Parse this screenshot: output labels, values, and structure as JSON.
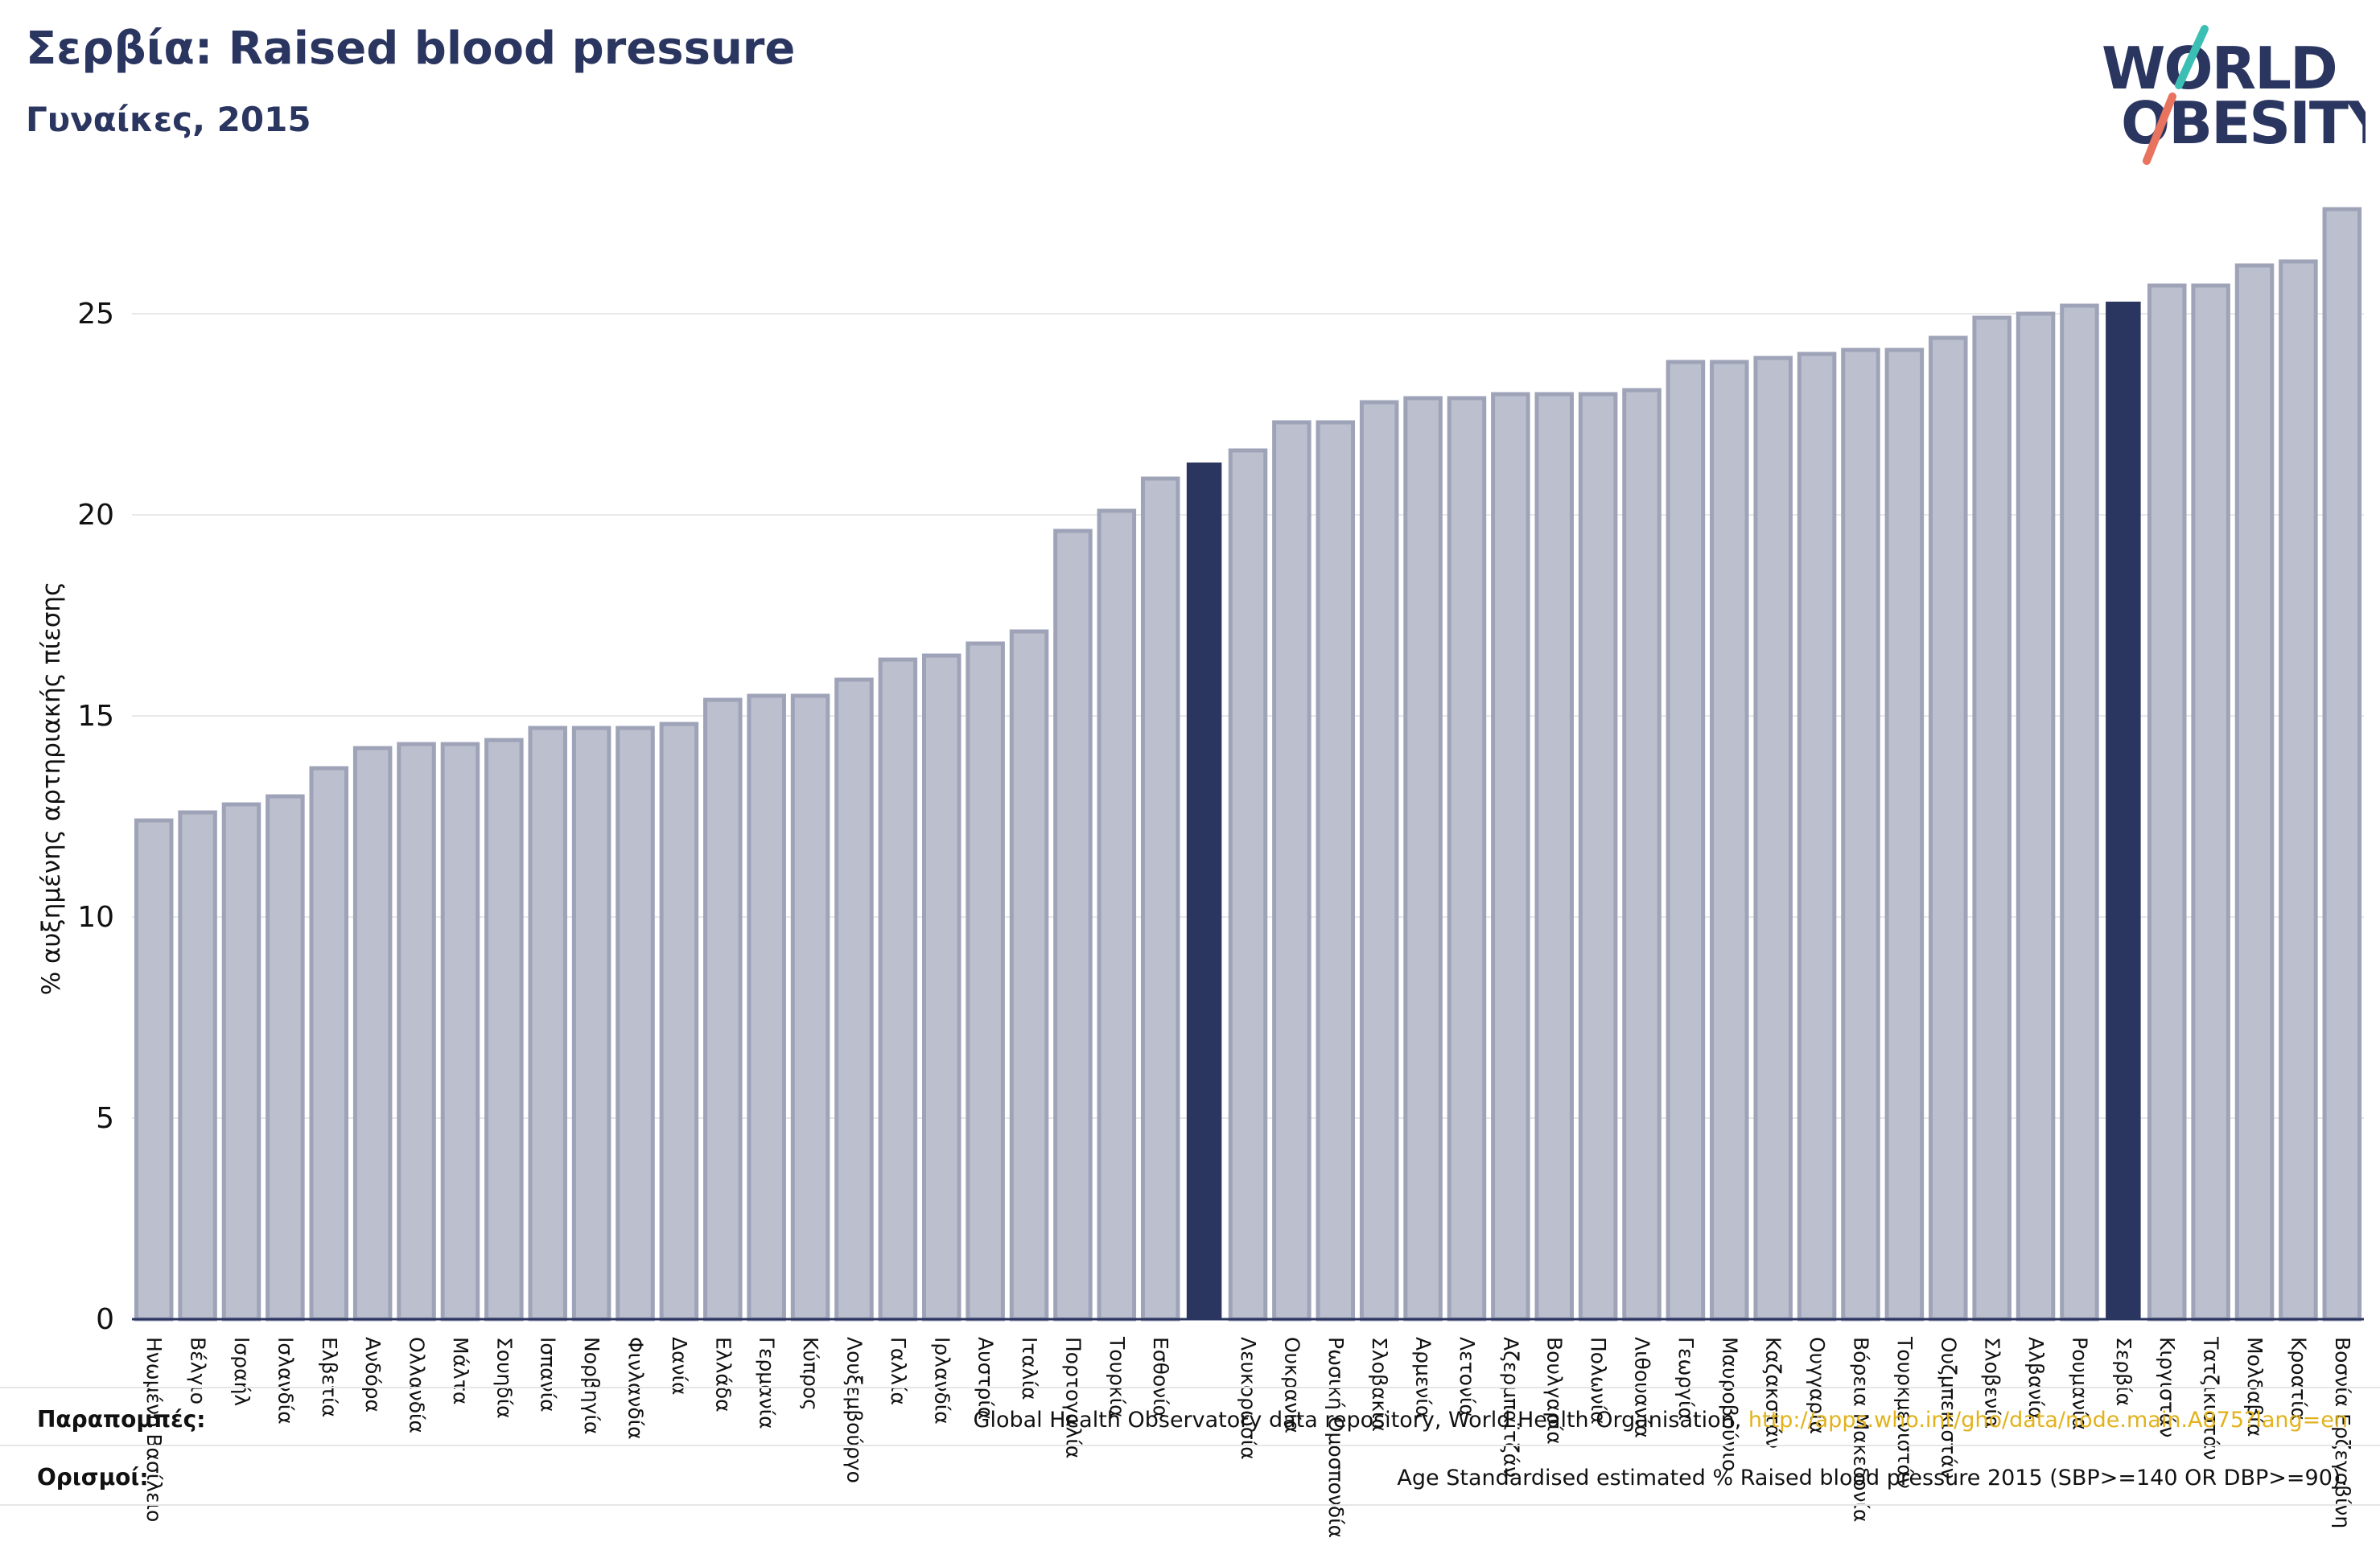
{
  "header": {
    "title": "Σερβία: Raised blood pressure",
    "subtitle": "Γυναίκες, 2015"
  },
  "logo": {
    "line1": "WORLD",
    "line2": "OBESITY"
  },
  "footer": {
    "sources_label": "Παραπομπές:",
    "sources_text": "Global Health Observatory data repository, World Health Organisation, ",
    "sources_link": "http://apps.who.int/gho/data/node.main.A875?lang=en",
    "definitions_label": "Ορισμοί:",
    "definitions_text": "Age Standardised estimated % Raised blood pressure 2015 (SBP>=140 OR DBP>=90)."
  },
  "colors": {
    "bar": "#bcbfcd",
    "bar_stroke": "#9ea3b8",
    "highlight": "#2a3560",
    "text": "#2a3560",
    "link": "#e2b21c",
    "logo_teal": "#3bbfb4",
    "logo_coral": "#e8735f"
  },
  "chart_data": {
    "type": "bar",
    "title": "Σερβία: Raised blood pressure",
    "subtitle": "Γυναίκες, 2015",
    "ylabel": "% αυξημένης αρτηριακής πίεσης",
    "xlabel": "",
    "ylim": [
      0,
      28
    ],
    "yticks": [
      0,
      5,
      10,
      15,
      20,
      25
    ],
    "grid": true,
    "categories": [
      "Ηνωμένο Βασίλειο",
      "Βέλγιο",
      "Ισραήλ",
      "Ισλανδία",
      "Ελβετία",
      "Ανδόρα",
      "Ολλανδία",
      "Μάλτα",
      "Σουηδία",
      "Ισπανία",
      "Νορβηγία",
      "Φινλανδία",
      "Δανία",
      "Ελλάδα",
      "Γερμανία",
      "Κύπρος",
      "Λουξεμβούργο",
      "Γαλλία",
      "Ιρλανδία",
      "Αυστρία",
      "Ιταλία",
      "Πορτογαλία",
      "Τουρκία",
      "Εσθονία",
      "",
      "Λευκορωσία",
      "Ουκρανία",
      "Ρωσική Ομοσπονδία",
      "Σλοβακία",
      "Αρμενία",
      "Λετονία",
      "Αζερμπαϊτζάν",
      "Βουλγαρία",
      "Πολωνία",
      "Λιθουανία",
      "Γεωργία",
      "Μαυροβούνιο",
      "Καζακστάν",
      "Ουγγαρία",
      "Βόρεια Μακεδονία",
      "Τουρκμενιστάν",
      "Ουζμπεκιστάν",
      "Σλοβενία",
      "Αλβανία",
      "Ρουμανία",
      "Σερβία",
      "Κιργιστάν",
      "Τατζικιστάν",
      "Μολδαβία",
      "Κροατία",
      "Βοσνία Ερζεγοβίνη"
    ],
    "values": [
      12.4,
      12.6,
      12.8,
      13.0,
      13.7,
      14.2,
      14.3,
      14.3,
      14.4,
      14.7,
      14.7,
      14.7,
      14.8,
      15.4,
      15.5,
      15.5,
      15.9,
      16.4,
      16.5,
      16.8,
      17.1,
      19.6,
      20.1,
      20.9,
      21.3,
      21.6,
      22.3,
      22.3,
      22.8,
      22.9,
      22.9,
      23.0,
      23.0,
      23.0,
      23.1,
      23.8,
      23.8,
      23.9,
      24.0,
      24.1,
      24.1,
      24.4,
      24.9,
      25.0,
      25.2,
      25.3,
      25.7,
      25.7,
      26.2,
      26.3,
      27.6
    ],
    "highlight_indices": [
      24,
      45
    ],
    "legend": "none"
  }
}
